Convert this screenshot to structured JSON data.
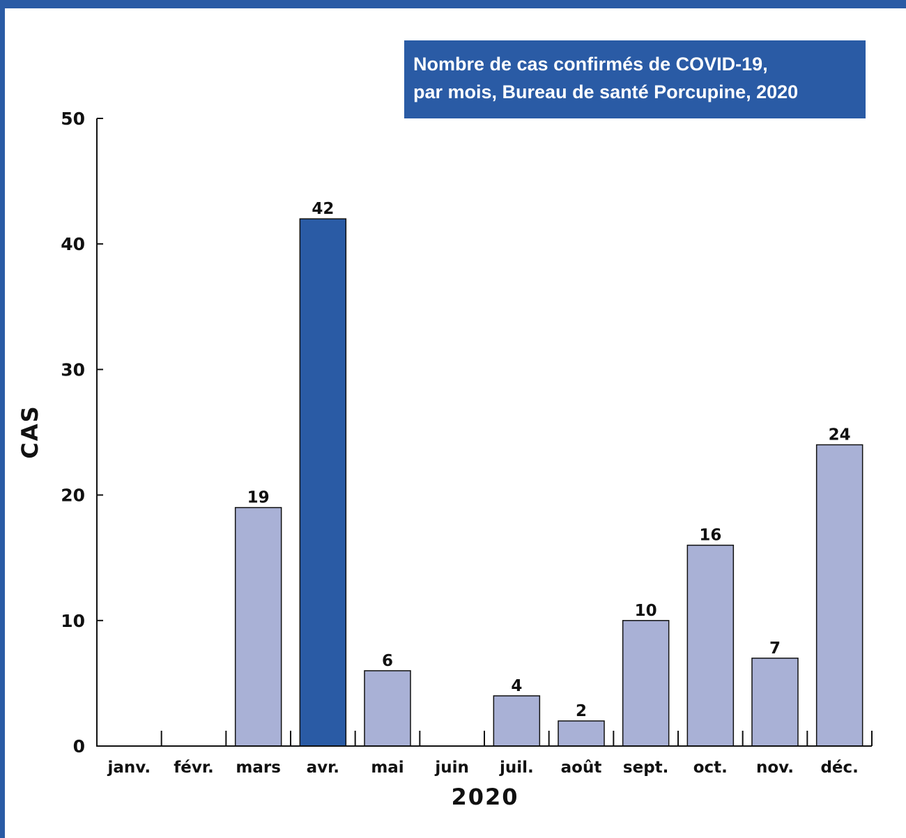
{
  "chart_data": {
    "type": "bar",
    "title_lines": [
      "Nombre de cas confirmés de COVID-19,",
      "par mois, Bureau de santé Porcupine, 2020"
    ],
    "xlabel": "2020",
    "ylabel": "CAS",
    "categories": [
      "janv.",
      "févr.",
      "mars",
      "avr.",
      "mai",
      "juin",
      "juil.",
      "août",
      "sept.",
      "oct.",
      "nov.",
      "déc."
    ],
    "values": [
      0,
      0,
      19,
      42,
      6,
      0,
      4,
      2,
      10,
      16,
      7,
      24
    ],
    "data_labels": [
      "",
      "",
      "19",
      "42",
      "6",
      "",
      "4",
      "2",
      "10",
      "16",
      "7",
      "24"
    ],
    "highlight_index": 3,
    "ylim": [
      0,
      50
    ],
    "yticks": [
      0,
      10,
      20,
      30,
      40,
      50
    ],
    "grid": false,
    "legend": "none",
    "colors": {
      "frame": "#2a5ba5",
      "bar": "#a9b1d6",
      "highlight": "#2a5ba5",
      "title_bg": "#2a5ba5",
      "title_text": "#ffffff"
    }
  }
}
